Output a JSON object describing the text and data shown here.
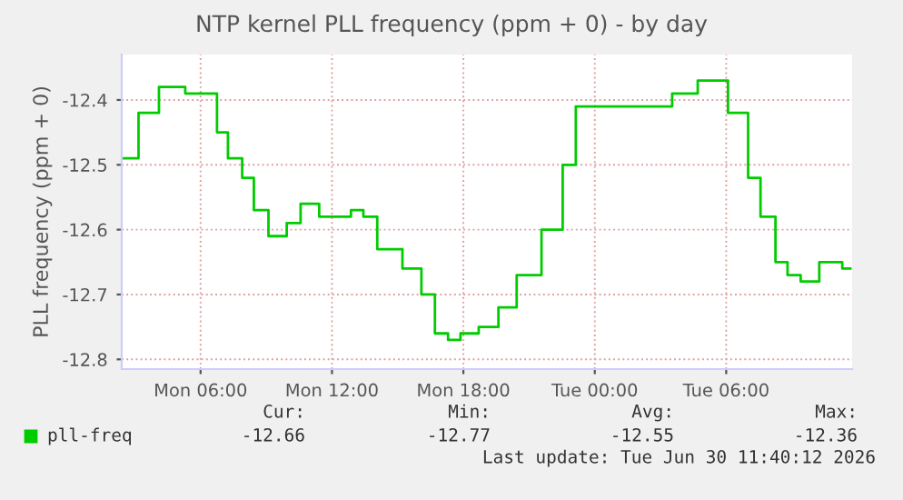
{
  "chart_data": {
    "type": "step",
    "title": "NTP kernel PLL frequency (ppm + 0) - by day",
    "ylabel": "PLL frequency (ppm + 0)",
    "x": [
      "2026-06-29T02:28",
      "2026-06-29T03:10",
      "2026-06-29T04:06",
      "2026-06-29T05:18",
      "2026-06-29T05:52",
      "2026-06-29T06:45",
      "2026-06-29T07:15",
      "2026-06-29T07:54",
      "2026-06-29T08:26",
      "2026-06-29T09:06",
      "2026-06-29T09:56",
      "2026-06-29T10:34",
      "2026-06-29T11:25",
      "2026-06-29T12:17",
      "2026-06-29T12:52",
      "2026-06-29T13:26",
      "2026-06-29T14:04",
      "2026-06-29T15:13",
      "2026-06-29T16:05",
      "2026-06-29T16:42",
      "2026-06-29T17:18",
      "2026-06-29T17:52",
      "2026-06-29T18:42",
      "2026-06-29T19:36",
      "2026-06-29T20:26",
      "2026-06-29T21:34",
      "2026-06-29T22:32",
      "2026-06-29T23:08",
      "2026-06-29T23:38",
      "2026-06-30T00:36",
      "2026-06-30T01:47",
      "2026-06-30T02:36",
      "2026-06-30T03:32",
      "2026-06-30T04:42",
      "2026-06-30T05:12",
      "2026-06-30T06:05",
      "2026-06-30T07:00",
      "2026-06-30T07:34",
      "2026-06-30T08:15",
      "2026-06-30T08:48",
      "2026-06-30T09:24",
      "2026-06-30T10:15",
      "2026-06-30T11:18",
      "2026-06-30T11:40"
    ],
    "series": [
      {
        "name": "pll-freq",
        "color": "#00cc00",
        "values": [
          -12.49,
          -12.42,
          -12.38,
          -12.39,
          -12.39,
          -12.45,
          -12.49,
          -12.52,
          -12.57,
          -12.61,
          -12.59,
          -12.56,
          -12.58,
          -12.58,
          -12.57,
          -12.58,
          -12.63,
          -12.66,
          -12.7,
          -12.76,
          -12.77,
          -12.76,
          -12.75,
          -12.72,
          -12.67,
          -12.6,
          -12.5,
          -12.41,
          -12.41,
          -12.41,
          -12.41,
          -12.41,
          -12.39,
          -12.37,
          -12.37,
          -12.42,
          -12.52,
          -12.58,
          -12.65,
          -12.67,
          -12.68,
          -12.65,
          -12.66,
          -12.66
        ]
      }
    ],
    "xlim": [
      "2026-06-29T02:24",
      "2026-06-30T11:45"
    ],
    "xticks": [
      {
        "value": "2026-06-29T06:00",
        "label": "Mon 06:00"
      },
      {
        "value": "2026-06-29T12:00",
        "label": "Mon 12:00"
      },
      {
        "value": "2026-06-29T18:00",
        "label": "Mon 18:00"
      },
      {
        "value": "2026-06-30T00:00",
        "label": "Tue 00:00"
      },
      {
        "value": "2026-06-30T06:00",
        "label": "Tue 06:00"
      }
    ],
    "ylim": [
      -12.815,
      -12.33
    ],
    "yticks": [
      -12.8,
      -12.7,
      -12.6,
      -12.5,
      -12.4
    ],
    "grid": true,
    "legend": "bottom",
    "annotations": [
      "Cur:",
      "Min:",
      "Avg:",
      "Max:",
      "-12.66",
      "-12.77",
      "-12.55",
      "-12.36",
      "Last update: Tue Jun 30 11:40:12 2026"
    ]
  }
}
